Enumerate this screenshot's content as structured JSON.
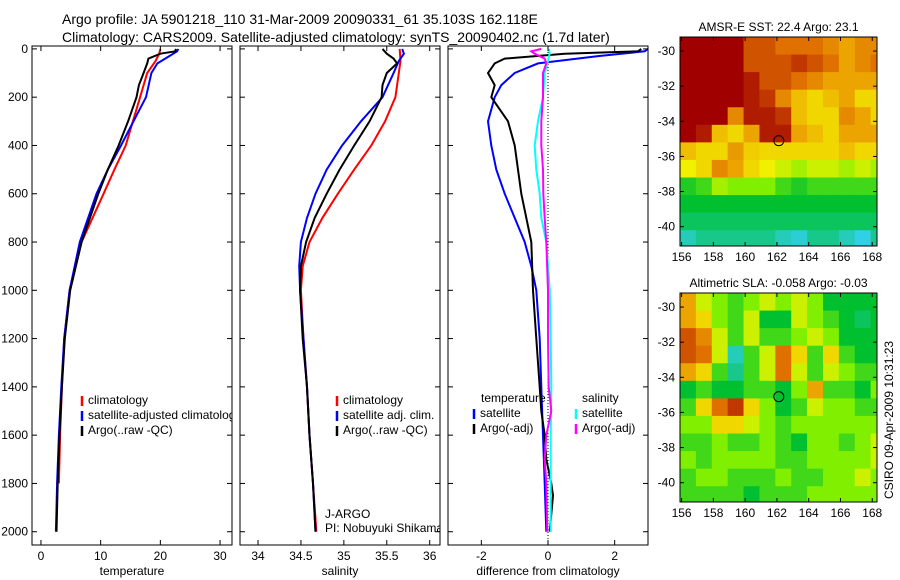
{
  "title_line1": "Argo profile: JA 5901218_110 31-Mar-2009 20090331_61 35.103S 162.118E",
  "title_line2": "Climatology: CARS2009. Satellite-adjusted climatology: synTS_20090402.nc (1.7d later)",
  "footer_stamp": "CSIRO 09-Apr-2009 10:31:23",
  "chart_data": [
    {
      "type": "line",
      "id": "temperature",
      "xlabel": "temperature",
      "ylabel": "",
      "xlim": [
        -1.5,
        32
      ],
      "ylim": [
        2055,
        -12
      ],
      "xticks": [
        0,
        10,
        20,
        30
      ],
      "yticks": [
        0,
        200,
        400,
        600,
        800,
        1000,
        1200,
        1400,
        1600,
        1800,
        2000
      ],
      "legend": [
        "climatology",
        "satellite-adjusted climatology",
        "Argo(..raw -QC)"
      ],
      "series": [
        {
          "name": "climatology",
          "color": "#ff0000",
          "depth": [
            0,
            20,
            50,
            100,
            200,
            300,
            400,
            500,
            600,
            800,
            1000,
            1200,
            1400,
            1600,
            1800
          ],
          "values": [
            20,
            19.8,
            19.2,
            17.8,
            16.6,
            15.4,
            14.2,
            12.3,
            10.5,
            6.8,
            4.8,
            3.9,
            3.5,
            3.2,
            3.0
          ]
        },
        {
          "name": "satellite-adjusted climatology",
          "color": "#0000ff",
          "depth": [
            0,
            10,
            30,
            60,
            100,
            200,
            300,
            400,
            500,
            600,
            800,
            1000,
            1200,
            1400,
            1600,
            1800,
            2000
          ],
          "values": [
            23,
            22.8,
            21.5,
            19.5,
            18.5,
            17.6,
            15.5,
            13.4,
            11.2,
            9.3,
            6.5,
            4.8,
            3.9,
            3.4,
            3.0,
            2.7,
            2.5
          ]
        },
        {
          "name": "Argo(..raw -QC)",
          "color": "#000000",
          "depth": [
            0,
            10,
            20,
            40,
            60,
            100,
            150,
            200,
            300,
            400,
            500,
            600,
            800,
            1000,
            1200,
            1400,
            1600,
            1800,
            2000
          ],
          "values": [
            22.6,
            22.5,
            20,
            18,
            17.8,
            17.2,
            16.4,
            16.0,
            14.6,
            13.0,
            11.2,
            9.6,
            6.8,
            4.9,
            4.0,
            3.5,
            3.1,
            2.8,
            2.6
          ]
        }
      ]
    },
    {
      "type": "line",
      "id": "salinity",
      "xlabel": "salinity",
      "ylabel": "",
      "xlim": [
        33.79,
        36.12
      ],
      "ylim": [
        2055,
        -12
      ],
      "xticks": [
        34,
        34.5,
        35,
        35.5,
        36
      ],
      "yticks": [],
      "legend": [
        "climatology",
        "satellite adj. clim.",
        "Argo(..raw -QC)"
      ],
      "annotation": [
        "J-ARGO",
        "PI: Nobuyuki Shikama"
      ],
      "series": [
        {
          "name": "climatology",
          "color": "#ff0000",
          "depth": [
            0,
            50,
            100,
            200,
            300,
            400,
            500,
            600,
            700,
            800,
            900,
            1000,
            1200,
            1400,
            1600,
            1800,
            2000
          ],
          "values": [
            35.65,
            35.66,
            35.64,
            35.6,
            35.48,
            35.32,
            35.12,
            34.93,
            34.75,
            34.6,
            34.52,
            34.5,
            34.53,
            34.57,
            34.6,
            34.64,
            34.68
          ]
        },
        {
          "name": "satellite adj. clim.",
          "color": "#0000ff",
          "depth": [
            0,
            20,
            50,
            100,
            200,
            300,
            400,
            500,
            600,
            700,
            800,
            900,
            1000,
            1200,
            1400,
            1600,
            1800,
            2000
          ],
          "values": [
            35.68,
            35.7,
            35.64,
            35.58,
            35.45,
            35.2,
            34.98,
            34.8,
            34.67,
            34.57,
            34.5,
            34.48,
            34.49,
            34.53,
            34.57,
            34.6,
            34.64,
            34.67
          ]
        },
        {
          "name": "Argo(..raw -QC)",
          "color": "#000000",
          "depth": [
            0,
            20,
            40,
            60,
            100,
            150,
            200,
            300,
            400,
            500,
            600,
            700,
            800,
            900,
            1000,
            1200,
            1400,
            1600,
            1800,
            2000
          ],
          "values": [
            35.45,
            35.5,
            35.58,
            35.62,
            35.5,
            35.45,
            35.44,
            35.3,
            35.12,
            34.95,
            34.8,
            34.66,
            34.56,
            34.5,
            34.49,
            34.52,
            34.57,
            34.6,
            34.64,
            34.67
          ]
        }
      ]
    },
    {
      "type": "line",
      "id": "difference",
      "xlabel": "difference from climatology",
      "ylabel": "",
      "xlim": [
        -3,
        3
      ],
      "ylim": [
        2055,
        -12
      ],
      "xticks": [
        -2,
        0,
        2
      ],
      "yticks": [],
      "legend_headers": [
        "temperature",
        "salinity"
      ],
      "legend": [
        "satellite",
        "Argo(-adj)",
        "satellite",
        "Argo(-adj)"
      ],
      "series": [
        {
          "name": "temperature satellite",
          "color": "#0000ff",
          "depth": [
            0,
            10,
            30,
            60,
            100,
            150,
            200,
            300,
            400,
            500,
            600,
            700,
            800,
            900,
            1000,
            1200,
            1400,
            1600,
            1800,
            2000
          ],
          "values": [
            3,
            2.9,
            1.5,
            -0.3,
            -1.0,
            -1.4,
            -1.6,
            -1.8,
            -1.7,
            -1.55,
            -1.3,
            -1.0,
            -0.7,
            -0.5,
            -0.35,
            -0.25,
            -0.2,
            -0.15,
            -0.1,
            -0.05
          ]
        },
        {
          "name": "temperature Argo(-adj)",
          "color": "#000000",
          "depth": [
            0,
            10,
            20,
            40,
            60,
            100,
            150,
            200,
            300,
            400,
            500,
            600,
            800,
            1000,
            1200,
            1400,
            1500,
            1600,
            1700,
            1800,
            1850,
            2000
          ],
          "values": [
            2.8,
            2.7,
            0.5,
            -1.3,
            -1.6,
            -1.8,
            -1.6,
            -1.7,
            -1.2,
            -1.0,
            -0.9,
            -0.8,
            -0.5,
            -0.45,
            -0.35,
            -0.25,
            -0.2,
            -0.1,
            -0.05,
            0.1,
            0.15,
            0.05
          ]
        },
        {
          "name": "salinity satellite",
          "color": "#00ffff",
          "depth": [
            0,
            20,
            50,
            100,
            200,
            300,
            400,
            500,
            600,
            700,
            800,
            1000,
            1200,
            1400,
            1600,
            1800,
            2000
          ],
          "values": [
            0.03,
            0.05,
            0.0,
            -0.1,
            -0.15,
            -0.3,
            -0.4,
            -0.35,
            -0.25,
            -0.2,
            -0.05,
            0.05,
            0.08,
            0.1,
            0.08,
            0.08,
            0.08
          ]
        },
        {
          "name": "salinity Argo(-adj)",
          "color": "#ff00ff",
          "depth": [
            0,
            10,
            20,
            40,
            60,
            100,
            200,
            300,
            400,
            500,
            600,
            700,
            800,
            1000,
            1200,
            1400,
            1500,
            1600,
            1700,
            1800,
            2000
          ],
          "values": [
            -0.2,
            -0.5,
            -0.4,
            -0.1,
            -0.05,
            -0.15,
            -0.15,
            -0.2,
            -0.2,
            -0.15,
            -0.14,
            -0.1,
            -0.05,
            0.0,
            0.0,
            0.02,
            0.1,
            -0.05,
            -0.1,
            -0.05,
            -0.02
          ]
        }
      ]
    },
    {
      "type": "heatmap",
      "id": "sst-map",
      "title": "AMSR-E SST: 22.4 Argo: 23.1",
      "xlim": [
        155.9,
        168.3
      ],
      "ylim": [
        -41.1,
        -29.2
      ],
      "xticks": [
        156,
        158,
        160,
        162,
        164,
        166,
        168
      ],
      "yticks": [
        -30,
        -32,
        -34,
        -36,
        -38,
        -40
      ],
      "marker": {
        "lon": 162.118,
        "lat": -35.103
      },
      "lon_start": 155.9,
      "lat_start": -29.2,
      "cell_deg": 1,
      "values": [
        [
          1,
          1,
          1,
          1,
          0.85,
          0.85,
          0.8,
          0.8,
          0.8,
          0.75,
          0.7,
          0.75,
          0.75
        ],
        [
          1,
          1,
          1,
          1,
          0.85,
          0.85,
          0.85,
          0.9,
          0.85,
          0.8,
          0.7,
          0.75,
          0.8
        ],
        [
          1,
          1,
          1,
          1,
          0.95,
          0.85,
          0.85,
          0.8,
          0.75,
          0.7,
          0.7,
          0.7,
          0.7
        ],
        [
          1,
          1,
          1,
          1,
          0.95,
          0.9,
          0.75,
          0.65,
          0.6,
          0.65,
          0.7,
          0.6,
          0.6
        ],
        [
          1,
          1,
          1,
          0.75,
          0.95,
          0.95,
          0.9,
          0.65,
          0.6,
          0.6,
          0.75,
          0.7,
          0.6
        ],
        [
          1,
          0.95,
          0.65,
          0.6,
          0.7,
          0.95,
          0.95,
          0.7,
          0.65,
          0.6,
          0.7,
          0.7,
          0.7
        ],
        [
          0.65,
          0.6,
          0.6,
          0.72,
          0.62,
          0.6,
          0.6,
          0.6,
          0.6,
          0.6,
          0.65,
          0.6,
          0.6
        ],
        [
          0.55,
          0.6,
          0.75,
          0.7,
          0.6,
          0.55,
          0.5,
          0.45,
          0.5,
          0.5,
          0.45,
          0.5,
          0.45
        ],
        [
          0.25,
          0.3,
          0.45,
          0.4,
          0.4,
          0.4,
          0.3,
          0.25,
          0.3,
          0.3,
          0.3,
          0.3,
          0.3
        ],
        [
          0.2,
          0.2,
          0.2,
          0.2,
          0.2,
          0.2,
          0.2,
          0.2,
          0.2,
          0.2,
          0.2,
          0.2,
          0.2
        ],
        [
          0.15,
          0.15,
          0.15,
          0.15,
          0.15,
          0.15,
          0.15,
          0.15,
          0.15,
          0.15,
          0.15,
          0.15,
          0.15
        ],
        [
          0.05,
          0.1,
          0.1,
          0.1,
          0.1,
          0.1,
          0.05,
          0.02,
          0.1,
          0.1,
          0.05,
          0.0,
          0.1
        ]
      ]
    },
    {
      "type": "heatmap",
      "id": "sla-map",
      "title": "Altimetric SLA: -0.058 Argo: -0.03",
      "xlim": [
        155.9,
        168.3
      ],
      "ylim": [
        -41.1,
        -29.2
      ],
      "xticks": [
        156,
        158,
        160,
        162,
        164,
        166,
        168
      ],
      "yticks": [
        -30,
        -32,
        -34,
        -36,
        -38,
        -40
      ],
      "marker": {
        "lon": 162.118,
        "lat": -35.103
      },
      "lon_start": 155.9,
      "lat_start": -29.2,
      "cell_deg": 1,
      "values": [
        [
          0.7,
          0.5,
          0.4,
          0.3,
          0.4,
          0.5,
          0.4,
          0.5,
          0.4,
          0.2,
          0.2,
          0.2,
          0.2
        ],
        [
          0.7,
          0.6,
          0.4,
          0.3,
          0.5,
          0.2,
          0.2,
          0.5,
          0.4,
          0.3,
          0.2,
          0.15,
          0.2
        ],
        [
          0.85,
          0.75,
          0.5,
          0.3,
          0.5,
          0.3,
          0.3,
          0.4,
          0.5,
          0.4,
          0.2,
          0.2,
          0.2
        ],
        [
          0.85,
          0.8,
          0.5,
          0.05,
          0.3,
          0.5,
          0.8,
          0.6,
          0.3,
          0.6,
          0.3,
          0.2,
          0.2
        ],
        [
          0.7,
          0.6,
          0.3,
          0.1,
          0.3,
          0.5,
          0.8,
          0.5,
          0.3,
          0.5,
          0.4,
          0.3,
          0.3
        ],
        [
          0.2,
          0.3,
          0.2,
          0.2,
          0.3,
          0.3,
          0.2,
          0.4,
          0.7,
          0.3,
          0.3,
          0.2,
          0.4
        ],
        [
          0.3,
          0.6,
          0.8,
          0.9,
          0.6,
          0.4,
          0.2,
          0.3,
          0.5,
          0.4,
          0.4,
          0.3,
          0.3
        ],
        [
          0.4,
          0.4,
          0.6,
          0.6,
          0.5,
          0.4,
          0.3,
          0.4,
          0.4,
          0.4,
          0.4,
          0.4,
          0.4
        ],
        [
          0.3,
          0.3,
          0.4,
          0.3,
          0.3,
          0.4,
          0.3,
          0.2,
          0.4,
          0.4,
          0.3,
          0.4,
          0.5
        ],
        [
          0.4,
          0.3,
          0.4,
          0.4,
          0.4,
          0.4,
          0.3,
          0.3,
          0.4,
          0.4,
          0.4,
          0.4,
          0.5
        ],
        [
          0.3,
          0.4,
          0.4,
          0.3,
          0.3,
          0.3,
          0.4,
          0.3,
          0.3,
          0.4,
          0.4,
          0.5,
          0.4
        ],
        [
          0.3,
          0.3,
          0.3,
          0.3,
          0.2,
          0.3,
          0.3,
          0.3,
          0.4,
          0.4,
          0.4,
          0.4,
          0.4
        ]
      ]
    }
  ]
}
